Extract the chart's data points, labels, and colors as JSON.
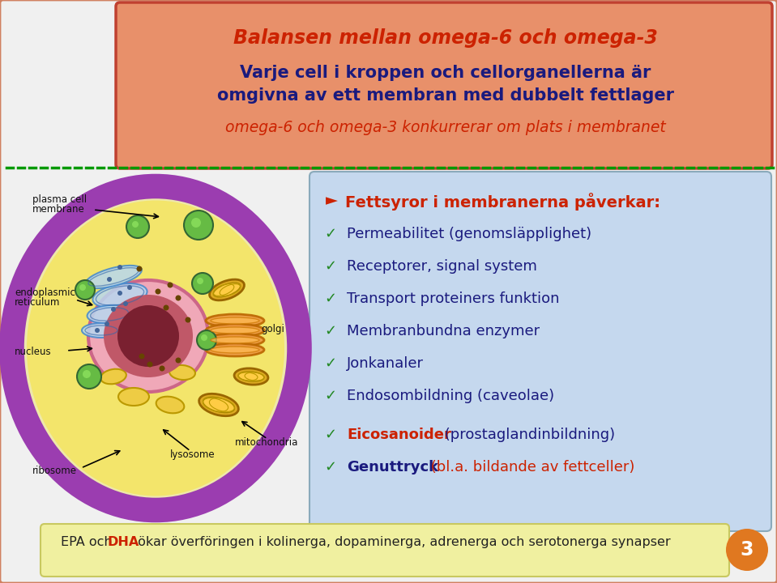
{
  "title_line1": "Balansen mellan omega-6 och omega-3",
  "title_line2a": "Varje cell i kroppen och cellorganellerna är",
  "title_line2b": "omgivna av ett membran med dubbelt fettlager",
  "title_line3": "omega-6 och omega-3 konkurrerar om plats i membranet",
  "header_bg_color": "#E8906A",
  "header_border_color": "#C04030",
  "title1_color": "#CC2200",
  "title2_color": "#1a1a7e",
  "title3_color": "#CC2200",
  "bullet_box_bg": "#C5D8EE",
  "bullet_box_border": "#8AAABB",
  "bullet_header": "Fettsyror i membranerna påverkar:",
  "bullet_header_color": "#CC2200",
  "bullets": [
    "Permeabilitet (genomsläpplighet)",
    "Receptorer, signal system",
    "Transport proteiners funktion",
    "Membranbundna enzymer",
    "Jonkanaler",
    "Endosombildning (caveolae)"
  ],
  "bullet_color": "#1a1a7e",
  "eico_bold": "Eicosanoider",
  "eico_rest": " (prostaglandinbildning)",
  "eico_bold_color": "#CC2200",
  "eico_rest_color": "#1a1a7e",
  "genu_bold": "Genuttryck",
  "genu_rest": " (bl.a. bildande av fettceller)",
  "genu_bold_color": "#1a1a7e",
  "genu_rest_color": "#CC2200",
  "bottom_box_bg": "#F0F0A0",
  "bottom_box_border": "#C8C860",
  "bottom_epa": "EPA och ",
  "bottom_dha": "DHA",
  "bottom_after": " ökar överföringen i kolinerga, dopaminerga, adrenerga och serotonerga synapser",
  "bottom_text_color": "#222222",
  "bottom_dha_color": "#CC2200",
  "page_num": "3",
  "page_num_bg": "#E07820",
  "bg_color": "#F0F0F0",
  "slide_border_color": "#D08060",
  "dash_color": "#009900",
  "check_color": "#228822",
  "arrow_color": "#CC2200"
}
